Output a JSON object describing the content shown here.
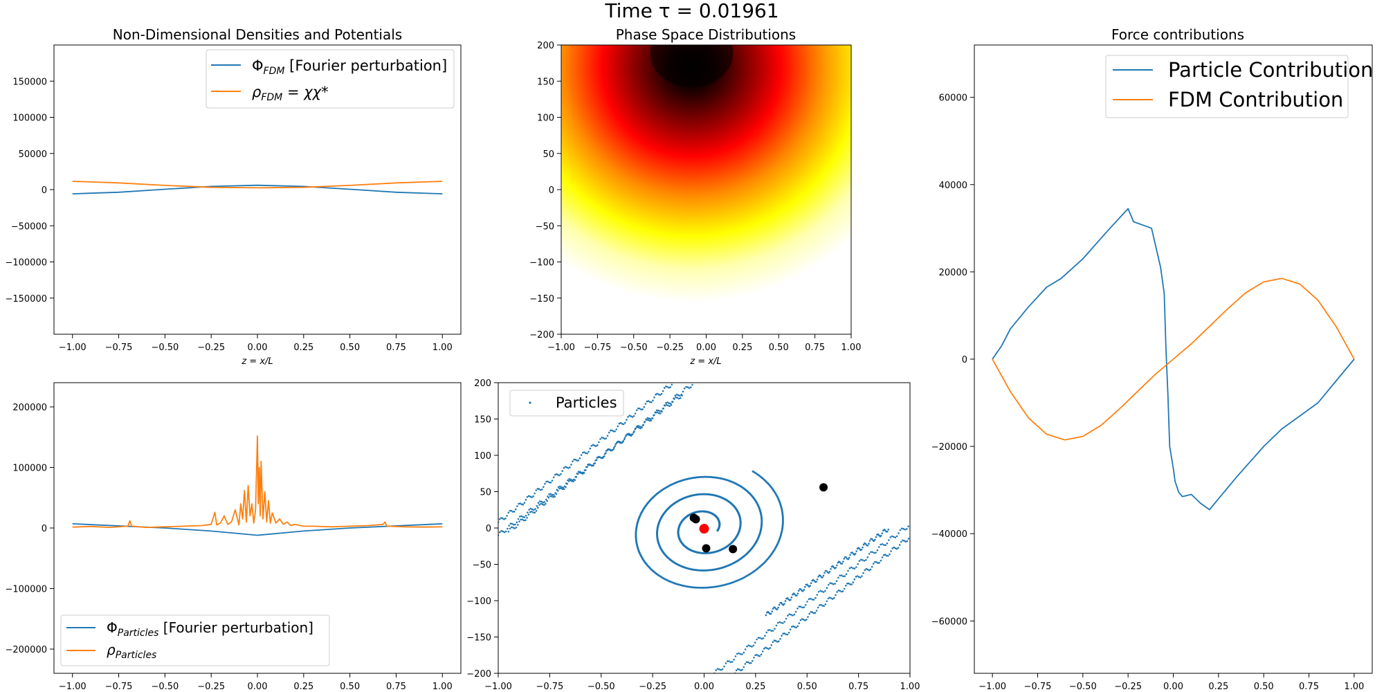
{
  "figure": {
    "suptitle": "Time τ = 0.01961"
  },
  "colors": {
    "blue": "#1f77b4",
    "orange": "#ff7f0e",
    "marker_red": "#ff0000",
    "marker_black": "#000000"
  },
  "chart_data": [
    {
      "id": "densities",
      "type": "line",
      "title": "Non-Dimensional Densities and Potentials",
      "xlabel": "z = x/L",
      "ylabel": "",
      "xlim": [
        -1.1,
        1.1
      ],
      "ylim": [
        -200000,
        200000
      ],
      "xticks": [
        -1.0,
        -0.75,
        -0.5,
        -0.25,
        0.0,
        0.25,
        0.5,
        0.75,
        1.0
      ],
      "xtick_labels": [
        "−1.00",
        "−0.75",
        "−0.50",
        "−0.25",
        "0.00",
        "0.25",
        "0.50",
        "0.75",
        "1.00"
      ],
      "yticks": [
        -150000,
        -100000,
        -50000,
        0,
        50000,
        100000,
        150000
      ],
      "ytick_labels": [
        "−150000",
        "−100000",
        "−50000",
        "0",
        "50000",
        "100000",
        "150000"
      ],
      "legend": {
        "placement": "upper right"
      },
      "series": [
        {
          "name": "Φ_FDM [Fourier perturbation]",
          "legend_base": "Φ",
          "legend_sub": "FDM",
          "legend_rest": " [Fourier perturbation]",
          "color": "#1f77b4",
          "x": [
            -1.0,
            -0.75,
            -0.5,
            -0.25,
            0.0,
            0.25,
            0.5,
            0.75,
            1.0
          ],
          "y": [
            -5800,
            -3600,
            500,
            4400,
            6000,
            4400,
            500,
            -3600,
            -5800
          ]
        },
        {
          "name": "ρ_FDM = χχ*",
          "legend_base": "ρ",
          "legend_sub": "FDM",
          "legend_rest": " = χχ*",
          "color": "#ff7f0e",
          "x": [
            -1.0,
            -0.75,
            -0.5,
            -0.25,
            0.0,
            0.25,
            0.5,
            0.75,
            1.0
          ],
          "y": [
            11500,
            9300,
            5800,
            3200,
            2500,
            3200,
            5800,
            9300,
            11500
          ]
        }
      ]
    },
    {
      "id": "phase",
      "type": "heatmap",
      "title": "Phase Space Distributions",
      "xlabel": "z = x/L",
      "xlim": [
        -1.0,
        1.0
      ],
      "ylim": [
        -200,
        200
      ],
      "xticks": [
        -1.0,
        -0.75,
        -0.5,
        -0.25,
        0.0,
        0.25,
        0.5,
        0.75,
        1.0
      ],
      "xtick_labels": [
        "−1.00",
        "−0.75",
        "−0.50",
        "−0.25",
        "0.00",
        "0.25",
        "0.50",
        "0.75",
        "1.00"
      ],
      "yticks": [
        -200,
        -150,
        -100,
        -50,
        0,
        50,
        100,
        150,
        200
      ],
      "ytick_labels": [
        "−200",
        "−150",
        "−100",
        "−50",
        "0",
        "50",
        "100",
        "150",
        "200"
      ],
      "colormap": "hot",
      "peak": {
        "x": -0.1,
        "y": 170
      }
    },
    {
      "id": "forces",
      "type": "line",
      "title": "Force contributions",
      "xlim": [
        -1.1,
        1.1
      ],
      "ylim": [
        -72000,
        72000
      ],
      "xticks": [
        -1.0,
        -0.75,
        -0.5,
        -0.25,
        0.0,
        0.25,
        0.5,
        0.75,
        1.0
      ],
      "xtick_labels": [
        "−1.00",
        "−0.75",
        "−0.50",
        "−0.25",
        "0.00",
        "0.25",
        "0.50",
        "0.75",
        "1.00"
      ],
      "yticks": [
        -60000,
        -40000,
        -20000,
        0,
        20000,
        40000,
        60000
      ],
      "ytick_labels": [
        "−60000",
        "−40000",
        "−20000",
        "0",
        "20000",
        "40000",
        "60000"
      ],
      "legend": {
        "placement": "upper right"
      },
      "series": [
        {
          "name": "Particle Contribution",
          "color": "#1f77b4",
          "x": [
            -1.0,
            -0.95,
            -0.9,
            -0.8,
            -0.7,
            -0.62,
            -0.5,
            -0.35,
            -0.25,
            -0.22,
            -0.12,
            -0.07,
            -0.05,
            -0.04,
            -0.03,
            -0.02,
            0.0,
            0.01,
            0.03,
            0.05,
            0.1,
            0.15,
            0.2,
            0.25,
            0.35,
            0.5,
            0.6,
            0.7,
            0.8,
            0.9,
            1.0
          ],
          "y": [
            0,
            3000,
            7000,
            12000,
            16500,
            18500,
            23000,
            30000,
            34500,
            31500,
            30000,
            21000,
            15000,
            2000,
            -8000,
            -20000,
            -25000,
            -28000,
            -30500,
            -31500,
            -31000,
            -33000,
            -34500,
            -32000,
            -27000,
            -20000,
            -16000,
            -13000,
            -10000,
            -5000,
            0
          ]
        },
        {
          "name": "FDM Contribution",
          "color": "#ff7f0e",
          "x": [
            -1.0,
            -0.9,
            -0.8,
            -0.7,
            -0.6,
            -0.5,
            -0.4,
            -0.3,
            -0.2,
            -0.1,
            0.0,
            0.1,
            0.2,
            0.3,
            0.4,
            0.5,
            0.6,
            0.7,
            0.8,
            0.9,
            1.0
          ],
          "y": [
            0,
            -7500,
            -13500,
            -17200,
            -18500,
            -17700,
            -15200,
            -11500,
            -7500,
            -3500,
            0,
            3500,
            7500,
            11500,
            15200,
            17700,
            18500,
            17200,
            13500,
            7500,
            0
          ]
        }
      ]
    },
    {
      "id": "particle_densities",
      "type": "line",
      "xlim": [
        -1.1,
        1.1
      ],
      "ylim": [
        -240000,
        240000
      ],
      "xticks": [
        -1.0,
        -0.75,
        -0.5,
        -0.25,
        0.0,
        0.25,
        0.5,
        0.75,
        1.0
      ],
      "xtick_labels": [
        "−1.00",
        "−0.75",
        "−0.50",
        "−0.25",
        "0.00",
        "0.25",
        "0.50",
        "0.75",
        "1.00"
      ],
      "yticks": [
        -200000,
        -100000,
        0,
        100000,
        200000
      ],
      "ytick_labels": [
        "−200000",
        "−100000",
        "0",
        "100000",
        "200000"
      ],
      "legend": {
        "placement": "lower left"
      },
      "series": [
        {
          "name": "Φ_Particles [Fourier perturbation]",
          "legend_base": "Φ",
          "legend_sub": "Particles",
          "legend_rest": " [Fourier perturbation]",
          "color": "#1f77b4",
          "x": [
            -1.0,
            -0.5,
            -0.25,
            0.0,
            0.25,
            0.5,
            1.0
          ],
          "y": [
            7000,
            0,
            -5000,
            -12000,
            -5000,
            0,
            7000
          ]
        },
        {
          "name": "ρ_Particles",
          "legend_base": "ρ",
          "legend_sub": "Particles",
          "legend_rest": "",
          "color": "#ff7f0e",
          "x": [
            -1.0,
            -0.9,
            -0.8,
            -0.7,
            -0.69,
            -0.68,
            -0.6,
            -0.5,
            -0.4,
            -0.3,
            -0.25,
            -0.23,
            -0.22,
            -0.2,
            -0.18,
            -0.16,
            -0.14,
            -0.12,
            -0.1,
            -0.09,
            -0.08,
            -0.07,
            -0.06,
            -0.05,
            -0.04,
            -0.03,
            -0.02,
            -0.01,
            0.0,
            0.005,
            0.01,
            0.015,
            0.02,
            0.03,
            0.04,
            0.05,
            0.06,
            0.07,
            0.08,
            0.1,
            0.12,
            0.14,
            0.16,
            0.18,
            0.2,
            0.25,
            0.3,
            0.4,
            0.5,
            0.6,
            0.68,
            0.69,
            0.7,
            0.8,
            0.9,
            1.0
          ],
          "y": [
            1500,
            2500,
            1000,
            3000,
            12000,
            3000,
            1000,
            2000,
            3000,
            4000,
            6000,
            26000,
            5000,
            8000,
            20000,
            6000,
            10000,
            30000,
            5000,
            40000,
            15000,
            62000,
            10000,
            70000,
            20000,
            40000,
            8000,
            30000,
            152000,
            40000,
            100000,
            20000,
            110000,
            15000,
            60000,
            10000,
            45000,
            8000,
            25000,
            8000,
            15000,
            6000,
            10000,
            4000,
            6000,
            3000,
            3000,
            2000,
            3000,
            4000,
            6000,
            10000,
            3000,
            2000,
            1500,
            2000
          ]
        }
      ]
    },
    {
      "id": "particles",
      "type": "scatter",
      "xlim": [
        -1.0,
        1.0
      ],
      "ylim": [
        -200,
        200
      ],
      "xticks": [
        -1.0,
        -0.75,
        -0.5,
        -0.25,
        0.0,
        0.25,
        0.5,
        0.75,
        1.0
      ],
      "xtick_labels": [
        "−1.00",
        "−0.75",
        "−0.50",
        "−0.25",
        "0.00",
        "0.25",
        "0.50",
        "0.75",
        "1.00"
      ],
      "yticks": [
        -200,
        -150,
        -100,
        -50,
        0,
        50,
        100,
        150,
        200
      ],
      "ytick_labels": [
        "−200",
        "−150",
        "−100",
        "−50",
        "0",
        "50",
        "100",
        "150",
        "200"
      ],
      "legend": {
        "placement": "upper left"
      },
      "series": [
        {
          "name": "Particles",
          "color": "#1f77b4"
        }
      ],
      "markers_black": [
        {
          "x": 0.58,
          "y": 56
        },
        {
          "x": 0.14,
          "y": -29
        },
        {
          "x": 0.01,
          "y": -28
        },
        {
          "x": -0.05,
          "y": 14
        },
        {
          "x": -0.04,
          "y": 12
        }
      ],
      "marker_red": {
        "x": 0.0,
        "y": -1
      }
    }
  ]
}
